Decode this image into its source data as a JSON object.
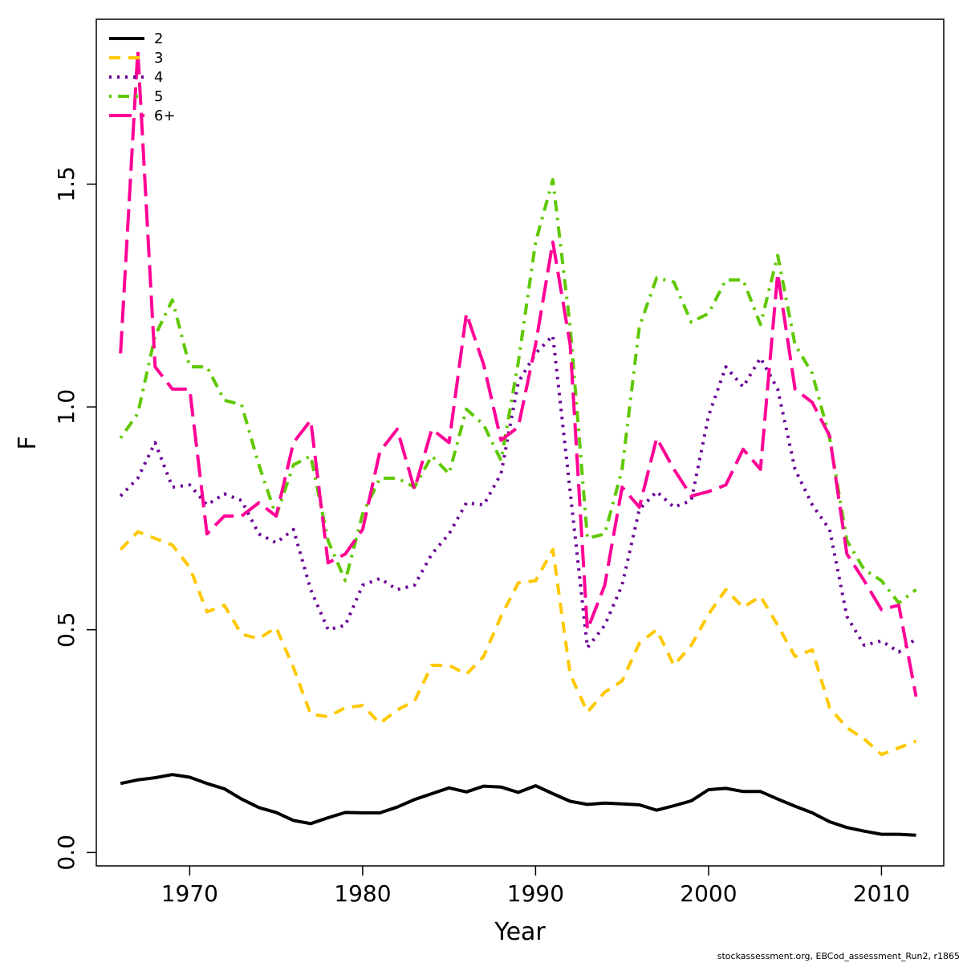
{
  "chart_data": {
    "type": "line",
    "title": "",
    "xlabel": "Year",
    "ylabel": "F",
    "xlim": [
      1964.6,
      2013.6
    ],
    "ylim": [
      -0.03,
      1.87
    ],
    "x_ticks": [
      1970,
      1980,
      1990,
      2000,
      2010
    ],
    "y_ticks": [
      0.0,
      0.5,
      1.0,
      1.5
    ],
    "x_tick_labels": [
      "1970",
      "1980",
      "1990",
      "2000",
      "2010"
    ],
    "y_tick_labels": [
      "0.0",
      "0.5",
      "1.0",
      "1.5"
    ],
    "grid": false,
    "legend_position": "top-left",
    "x": [
      1966,
      1967,
      1968,
      1969,
      1970,
      1971,
      1972,
      1973,
      1974,
      1975,
      1976,
      1977,
      1978,
      1979,
      1980,
      1981,
      1982,
      1983,
      1984,
      1985,
      1986,
      1987,
      1988,
      1989,
      1990,
      1991,
      1992,
      1993,
      1994,
      1995,
      1996,
      1997,
      1998,
      1999,
      2000,
      2001,
      2002,
      2003,
      2004,
      2005,
      2006,
      2007,
      2008,
      2009,
      2010,
      2011,
      2012
    ],
    "series": [
      {
        "name": "2",
        "color": "#000000",
        "dash": "solid",
        "values": [
          0.155,
          0.163,
          0.168,
          0.175,
          0.169,
          0.155,
          0.143,
          0.12,
          0.101,
          0.09,
          0.072,
          0.065,
          0.078,
          0.09,
          0.089,
          0.089,
          0.102,
          0.119,
          0.132,
          0.145,
          0.136,
          0.149,
          0.147,
          0.135,
          0.15,
          0.132,
          0.115,
          0.108,
          0.111,
          0.109,
          0.107,
          0.095,
          0.105,
          0.116,
          0.141,
          0.144,
          0.137,
          0.137,
          0.12,
          0.104,
          0.089,
          0.069,
          0.056,
          0.048,
          0.041,
          0.041,
          0.039
        ]
      },
      {
        "name": "3",
        "color": "#ffc800",
        "dash": "dashed",
        "values": [
          0.68,
          0.72,
          0.705,
          0.69,
          0.64,
          0.54,
          0.555,
          0.49,
          0.48,
          0.505,
          0.415,
          0.31,
          0.305,
          0.325,
          0.33,
          0.29,
          0.32,
          0.34,
          0.42,
          0.42,
          0.4,
          0.44,
          0.53,
          0.605,
          0.61,
          0.68,
          0.4,
          0.315,
          0.36,
          0.385,
          0.47,
          0.5,
          0.42,
          0.465,
          0.535,
          0.59,
          0.55,
          0.575,
          0.51,
          0.44,
          0.455,
          0.325,
          0.28,
          0.255,
          0.22,
          0.235,
          0.25
        ]
      },
      {
        "name": "4",
        "color": "#6a0096",
        "dash": "dotted",
        "values": [
          0.8,
          0.84,
          0.92,
          0.82,
          0.825,
          0.78,
          0.805,
          0.79,
          0.715,
          0.695,
          0.725,
          0.59,
          0.5,
          0.51,
          0.6,
          0.615,
          0.59,
          0.6,
          0.67,
          0.715,
          0.785,
          0.78,
          0.85,
          1.055,
          1.12,
          1.16,
          0.81,
          0.46,
          0.51,
          0.6,
          0.77,
          0.81,
          0.775,
          0.79,
          0.98,
          1.09,
          1.045,
          1.11,
          1.04,
          0.86,
          0.78,
          0.725,
          0.53,
          0.465,
          0.475,
          0.45,
          0.48
        ]
      },
      {
        "name": "5",
        "color": "#5fc800",
        "dash": "dotdash",
        "values": [
          0.93,
          0.985,
          1.16,
          1.24,
          1.09,
          1.09,
          1.015,
          1.005,
          0.87,
          0.755,
          0.87,
          0.89,
          0.7,
          0.61,
          0.76,
          0.84,
          0.84,
          0.82,
          0.89,
          0.85,
          0.995,
          0.96,
          0.88,
          1.1,
          1.37,
          1.51,
          1.18,
          0.705,
          0.715,
          0.86,
          1.18,
          1.29,
          1.28,
          1.19,
          1.21,
          1.285,
          1.285,
          1.185,
          1.34,
          1.14,
          1.075,
          0.93,
          0.7,
          0.635,
          0.61,
          0.56,
          0.59
        ]
      },
      {
        "name": "6+",
        "color": "#ff0096",
        "dash": "longdash",
        "values": [
          1.12,
          1.8,
          1.09,
          1.04,
          1.04,
          0.715,
          0.755,
          0.755,
          0.785,
          0.755,
          0.92,
          0.97,
          0.65,
          0.67,
          0.725,
          0.9,
          0.95,
          0.815,
          0.95,
          0.92,
          1.21,
          1.095,
          0.925,
          0.955,
          1.14,
          1.37,
          1.14,
          0.5,
          0.6,
          0.82,
          0.775,
          0.93,
          0.86,
          0.8,
          0.81,
          0.825,
          0.905,
          0.86,
          1.3,
          1.04,
          1.01,
          0.935,
          0.67,
          0.61,
          0.545,
          0.555,
          0.35
        ]
      }
    ]
  },
  "footer": {
    "credit": "stockassessment.org, EBCod_assessment_Run2, r1865"
  }
}
